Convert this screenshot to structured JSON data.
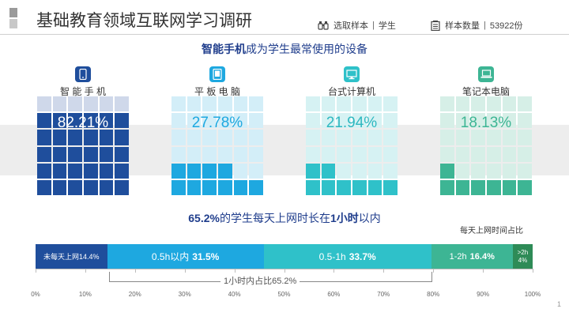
{
  "header": {
    "title": "基础教育领域互联网学习调研",
    "sample_select_label": "选取样本",
    "sample_select_value": "学生",
    "sample_count_label": "样本数量",
    "sample_count_value": "53922份",
    "logo_colors": [
      "#9a9a9a",
      "#c8c8c8"
    ]
  },
  "devices": {
    "headline_bold": "智能手机",
    "headline_rest": "成为学生最常使用的设备",
    "items": [
      {
        "label": "智 能 手 机",
        "percent": "82.21%",
        "value": 82.21,
        "icon": "smartphone-icon",
        "fill_color": "#1f4e9c",
        "empty_color": "#cfd8ea",
        "icon_bg": "#1f4e9c",
        "text_color": "#ffffff"
      },
      {
        "label": "平 板 电 脑",
        "percent": "27.78%",
        "value": 27.78,
        "icon": "tablet-icon",
        "fill_color": "#1ea8e0",
        "empty_color": "#d3eef8",
        "icon_bg": "#1ea8e0",
        "text_color": "#1ea8e0"
      },
      {
        "label": "台式计算机",
        "percent": "21.94%",
        "value": 21.94,
        "icon": "desktop-icon",
        "fill_color": "#2fc1c9",
        "empty_color": "#d6f2f3",
        "icon_bg": "#2fc1c9",
        "text_color": "#2fb8c0"
      },
      {
        "label": "笔记本电脑",
        "percent": "18.13%",
        "value": 18.13,
        "icon": "laptop-icon",
        "fill_color": "#3db594",
        "empty_color": "#d6efe7",
        "icon_bg": "#3db594",
        "text_color": "#3db594"
      }
    ]
  },
  "usage": {
    "headline_bold1": "65.2%",
    "headline_mid": "的学生每天上网时长在",
    "headline_bold2": "1小时",
    "headline_end": "以内",
    "legend_note": "每天上网时间占比",
    "segments": [
      {
        "label": "未每天上网",
        "value_text": "14.4%",
        "value": 14.4,
        "color": "#1f4e9c"
      },
      {
        "label": "0.5h以内",
        "value_text": "31.5%",
        "value": 31.5,
        "color": "#1ea8e0"
      },
      {
        "label": "0.5-1h",
        "value_text": "33.7%",
        "value": 33.7,
        "color": "#2fc1c9"
      },
      {
        "label": "1-2h",
        "value_text": "16.4%",
        "value": 16.4,
        "color": "#3db594"
      },
      {
        "label": ">2h",
        "value_text": "4%",
        "value": 4,
        "color": "#2e8b57"
      }
    ],
    "bracket_label": "1小时内占比65.2%",
    "axis_ticks": [
      "0%",
      "10%",
      "20%",
      "30%",
      "40%",
      "50%",
      "60%",
      "70%",
      "80%",
      "90%",
      "100%"
    ]
  },
  "page_number": "1"
}
